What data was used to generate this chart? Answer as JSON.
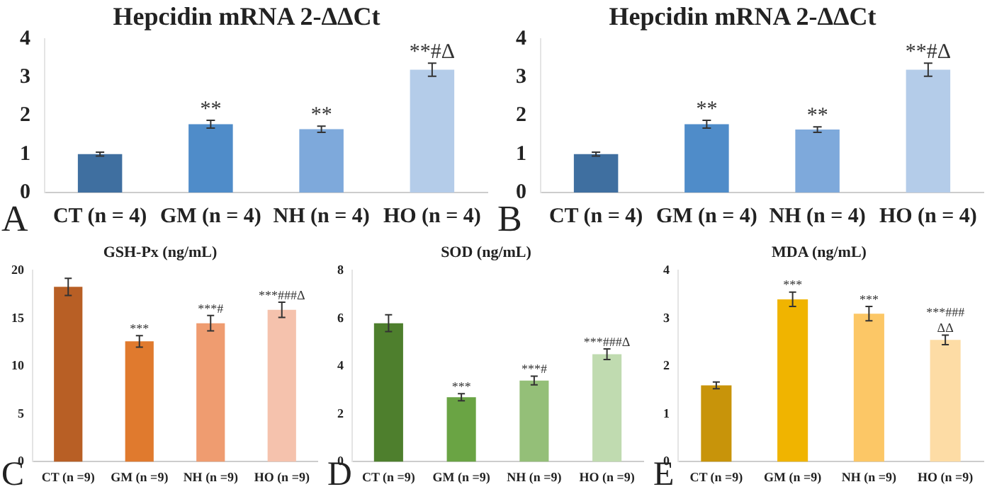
{
  "chart_data": [
    {
      "type": "bar",
      "title": "Hepcidin mRNA 2-ΔΔCt",
      "categories": [
        "CT (n = 4)",
        "GM (n = 4)",
        "NH (n = 4)",
        "HO (n = 4)"
      ],
      "values": [
        1.0,
        1.78,
        1.65,
        3.2
      ],
      "errors": [
        0.05,
        0.1,
        0.08,
        0.17
      ],
      "colors": [
        "#3f6fa0",
        "#4f8cc9",
        "#7ea9db",
        "#b4cce9"
      ],
      "ylim": [
        0,
        4
      ],
      "yticks": [
        0,
        1,
        2,
        3,
        4
      ],
      "grid": false,
      "legend": false,
      "annotations": [
        "A",
        {
          "text": "**",
          "x": "GM (n = 4)",
          "y": 1.88
        },
        {
          "text": "**",
          "x": "NH (n = 4)",
          "y": 1.73
        },
        {
          "text": "**#Δ",
          "x": "HO (n = 4)",
          "y": 3.37
        }
      ]
    },
    {
      "type": "bar",
      "title": "Hepcidin mRNA 2-ΔΔCt",
      "categories": [
        "CT (n = 4)",
        "GM (n = 4)",
        "NH (n = 4)",
        "HO (n = 4)"
      ],
      "values": [
        1.0,
        1.78,
        1.64,
        3.2
      ],
      "errors": [
        0.05,
        0.1,
        0.07,
        0.17
      ],
      "colors": [
        "#3f6fa0",
        "#4f8cc9",
        "#7ea9db",
        "#b4cce9"
      ],
      "ylim": [
        0,
        4
      ],
      "yticks": [
        0,
        1,
        2,
        3,
        4
      ],
      "grid": false,
      "legend": false,
      "annotations": [
        "B",
        {
          "text": "**",
          "x": "GM (n = 4)",
          "y": 1.88
        },
        {
          "text": "**",
          "x": "NH (n = 4)",
          "y": 1.71
        },
        {
          "text": "**#Δ",
          "x": "HO (n = 4)",
          "y": 3.37
        }
      ]
    },
    {
      "type": "bar",
      "title": "GSH-Px (ng/mL)",
      "categories": [
        "CT (n =9)",
        "GM (n =9)",
        "NH (n =9)",
        "HO (n =9)"
      ],
      "values": [
        18.3,
        12.6,
        14.5,
        15.9
      ],
      "errors": [
        0.9,
        0.6,
        0.8,
        0.8
      ],
      "colors": [
        "#b85f25",
        "#e07a2e",
        "#ef9c70",
        "#f5c2ad"
      ],
      "ylim": [
        0,
        20
      ],
      "yticks": [
        0,
        5,
        10,
        15,
        20
      ],
      "grid": false,
      "legend": false,
      "annotations": [
        "C",
        {
          "text": "***",
          "x": "GM (n =9)",
          "y": 13.2
        },
        {
          "text": "***#",
          "x": "NH (n =9)",
          "y": 15.3
        },
        {
          "text": "***###Δ",
          "x": "HO (n =9)",
          "y": 16.7
        }
      ]
    },
    {
      "type": "bar",
      "title": "SOD (ng/mL)",
      "categories": [
        "CT (n =9)",
        "GM (n =9)",
        "NH (n =9)",
        "HO (n =9)"
      ],
      "values": [
        5.8,
        2.7,
        3.4,
        4.5
      ],
      "errors": [
        0.35,
        0.15,
        0.18,
        0.22
      ],
      "colors": [
        "#4e7f2d",
        "#6aa444",
        "#94bf78",
        "#c0dbb0"
      ],
      "ylim": [
        0,
        8
      ],
      "yticks": [
        0,
        2,
        4,
        6,
        8
      ],
      "grid": false,
      "legend": false,
      "annotations": [
        "D",
        {
          "text": "***",
          "x": "GM (n =9)",
          "y": 2.85
        },
        {
          "text": "***#",
          "x": "NH (n =9)",
          "y": 3.58
        },
        {
          "text": "***###Δ",
          "x": "HO (n =9)",
          "y": 4.72
        }
      ]
    },
    {
      "type": "bar",
      "title": "MDA (ng/mL)",
      "categories": [
        "CT (n =9)",
        "GM (n =9)",
        "NH (n =9)",
        "HO (n =9)"
      ],
      "values": [
        1.6,
        3.4,
        3.1,
        2.55
      ],
      "errors": [
        0.07,
        0.15,
        0.15,
        0.1
      ],
      "colors": [
        "#c8940a",
        "#f0b400",
        "#fcc766",
        "#fddca5"
      ],
      "ylim": [
        0,
        4
      ],
      "yticks": [
        0,
        1,
        2,
        3,
        4
      ],
      "grid": false,
      "legend": false,
      "annotations": [
        "E",
        {
          "text": "***",
          "x": "GM (n =9)",
          "y": 3.55
        },
        {
          "text": "***",
          "x": "NH (n =9)",
          "y": 3.25
        },
        {
          "text": "***###\nΔΔ",
          "x": "HO (n =9)",
          "y": 2.65
        }
      ]
    }
  ]
}
